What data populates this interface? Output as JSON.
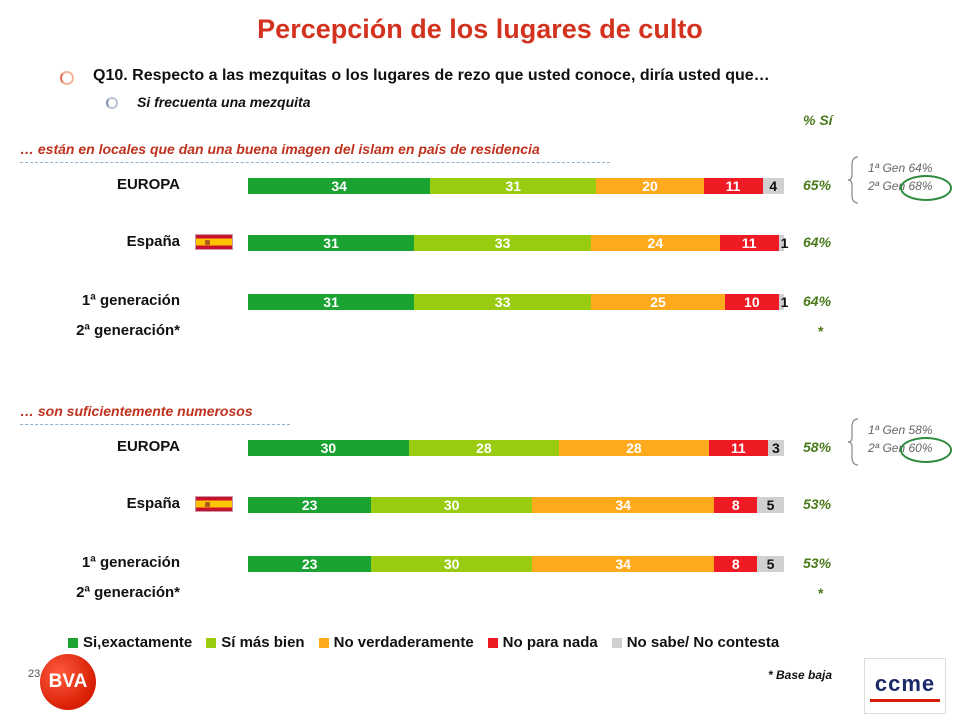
{
  "page": {
    "title": "Percepción de los lugares de culto",
    "question": "Q10. Respecto a las mezquitas o los lugares de rezo que usted conoce, diría usted que…",
    "filter": "Si frecuenta una mezquita",
    "pct_header": "% Sí",
    "base_note": "* Base baja",
    "page_number": "23",
    "logo_left": "BVA",
    "logo_right": "ccme"
  },
  "colors": {
    "si_exactamente": "#1aa332",
    "si_mas_bien": "#99cc11",
    "no_verdaderamente": "#ffaa1c",
    "no_para_nada": "#ee1b24",
    "no_sabe": "#d0d0d0",
    "title": "#d2321e",
    "pct": "#4a7a1a"
  },
  "chart_data": [
    {
      "type": "bar",
      "stacked": true,
      "orientation": "horizontal",
      "title": "… están en locales que dan una buena imagen del islam en país de residencia",
      "categories": [
        "EUROPA",
        "España",
        "1ª generación",
        "2ª generación*"
      ],
      "series": [
        {
          "name": "Si,exactamente",
          "values": [
            34,
            31,
            31,
            null
          ]
        },
        {
          "name": "Sí más bien",
          "values": [
            31,
            33,
            33,
            null
          ]
        },
        {
          "name": "No verdaderamente",
          "values": [
            20,
            24,
            25,
            null
          ]
        },
        {
          "name": "No para nada",
          "values": [
            11,
            11,
            10,
            null
          ]
        },
        {
          "name": "No sabe/ No contesta",
          "values": [
            4,
            1,
            1,
            null
          ]
        }
      ],
      "pct_si": [
        "65%",
        "64%",
        "64%",
        "*"
      ],
      "gen_note": [
        "1ª Gen 64%",
        "2ª Gen 68%"
      ],
      "xlim": [
        0,
        100
      ]
    },
    {
      "type": "bar",
      "stacked": true,
      "orientation": "horizontal",
      "title": "… son suficientemente numerosos",
      "categories": [
        "EUROPA",
        "España",
        "1ª generación",
        "2ª generación*"
      ],
      "series": [
        {
          "name": "Si,exactamente",
          "values": [
            30,
            23,
            23,
            null
          ]
        },
        {
          "name": "Sí más bien",
          "values": [
            28,
            30,
            30,
            null
          ]
        },
        {
          "name": "No verdaderamente",
          "values": [
            28,
            34,
            34,
            null
          ]
        },
        {
          "name": "No para nada",
          "values": [
            11,
            8,
            8,
            null
          ]
        },
        {
          "name": "No sabe/ No contesta",
          "values": [
            3,
            5,
            5,
            null
          ]
        }
      ],
      "pct_si": [
        "58%",
        "53%",
        "53%",
        "*"
      ],
      "gen_note": [
        "1ª Gen 58%",
        "2ª Gen 60%"
      ],
      "xlim": [
        0,
        100
      ]
    }
  ],
  "legend": [
    {
      "label": "Si,exactamente",
      "color": "#1aa332"
    },
    {
      "label": "Sí más bien",
      "color": "#99cc11"
    },
    {
      "label": "No verdaderamente",
      "color": "#ffaa1c"
    },
    {
      "label": "No para nada",
      "color": "#ee1b24"
    },
    {
      "label": "No sabe/ No contesta",
      "color": "#d0d0d0"
    }
  ]
}
